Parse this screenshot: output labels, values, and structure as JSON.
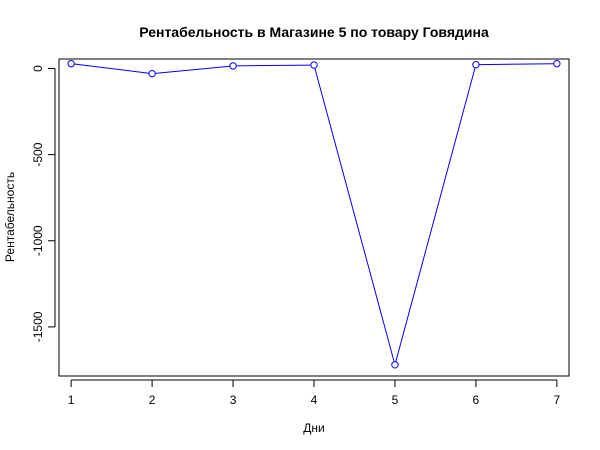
{
  "chart_data": {
    "type": "line",
    "title": "Рентабельность в Магазине 5 по товару Говядина",
    "xlabel": "Дни",
    "ylabel": "Рентабельность",
    "x": [
      1,
      2,
      3,
      4,
      5,
      6,
      7
    ],
    "series": [
      {
        "values": [
          28,
          -30,
          15,
          20,
          -1720,
          22,
          28
        ],
        "color": "#0000ff",
        "marker": "open-circle"
      }
    ],
    "xlim": [
      0.85,
      7.15
    ],
    "ylim": [
      -1785,
      55
    ],
    "x_ticks": [
      1,
      2,
      3,
      4,
      5,
      6,
      7
    ],
    "y_ticks": [
      0,
      -500,
      -1000,
      -1500
    ],
    "grid": false,
    "legend": "none",
    "box": true
  }
}
